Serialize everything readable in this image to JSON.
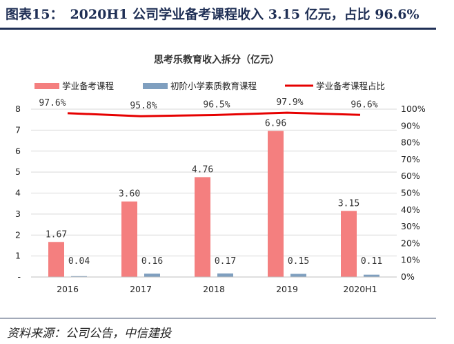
{
  "figure": {
    "number": "图表15：",
    "title": "2020H1 公司学业备考课程收入 3.15 亿元，占比 96.6%",
    "source": "资料来源：公司公告，中信建投"
  },
  "chart_data": {
    "type": "bar",
    "title": "思考乐教育收入拆分（亿元）",
    "categories": [
      "2016",
      "2017",
      "2018",
      "2019",
      "2020H1"
    ],
    "series": [
      {
        "name": "学业备考课程",
        "type": "bar",
        "axis": "left",
        "color": "#f47f7f",
        "values": [
          1.67,
          3.6,
          4.76,
          6.96,
          3.15
        ],
        "labels": [
          "1.67",
          "3.60",
          "4.76",
          "6.96",
          "3.15"
        ]
      },
      {
        "name": "初阶小学素质教育课程",
        "type": "bar",
        "axis": "left",
        "color": "#7f9fbf",
        "values": [
          0.04,
          0.16,
          0.17,
          0.15,
          0.11
        ],
        "labels": [
          "0.04",
          "0.16",
          "0.17",
          "0.15",
          "0.11"
        ]
      },
      {
        "name": "学业备考课程占比",
        "type": "line",
        "axis": "right",
        "color": "#e60000",
        "values": [
          97.6,
          95.8,
          96.5,
          97.9,
          96.6
        ],
        "labels": [
          "97.6%",
          "95.8%",
          "96.5%",
          "97.9%",
          "96.6%"
        ]
      }
    ],
    "y_left": {
      "ylim": [
        0,
        8
      ],
      "ticks": [
        "-",
        "1",
        "2",
        "3",
        "4",
        "5",
        "6",
        "7",
        "8"
      ]
    },
    "y_right": {
      "ylim": [
        0,
        100
      ],
      "ticks": [
        "0%",
        "10%",
        "20%",
        "30%",
        "40%",
        "50%",
        "60%",
        "70%",
        "80%",
        "90%",
        "100%"
      ]
    },
    "grid": true,
    "legend": "top"
  }
}
